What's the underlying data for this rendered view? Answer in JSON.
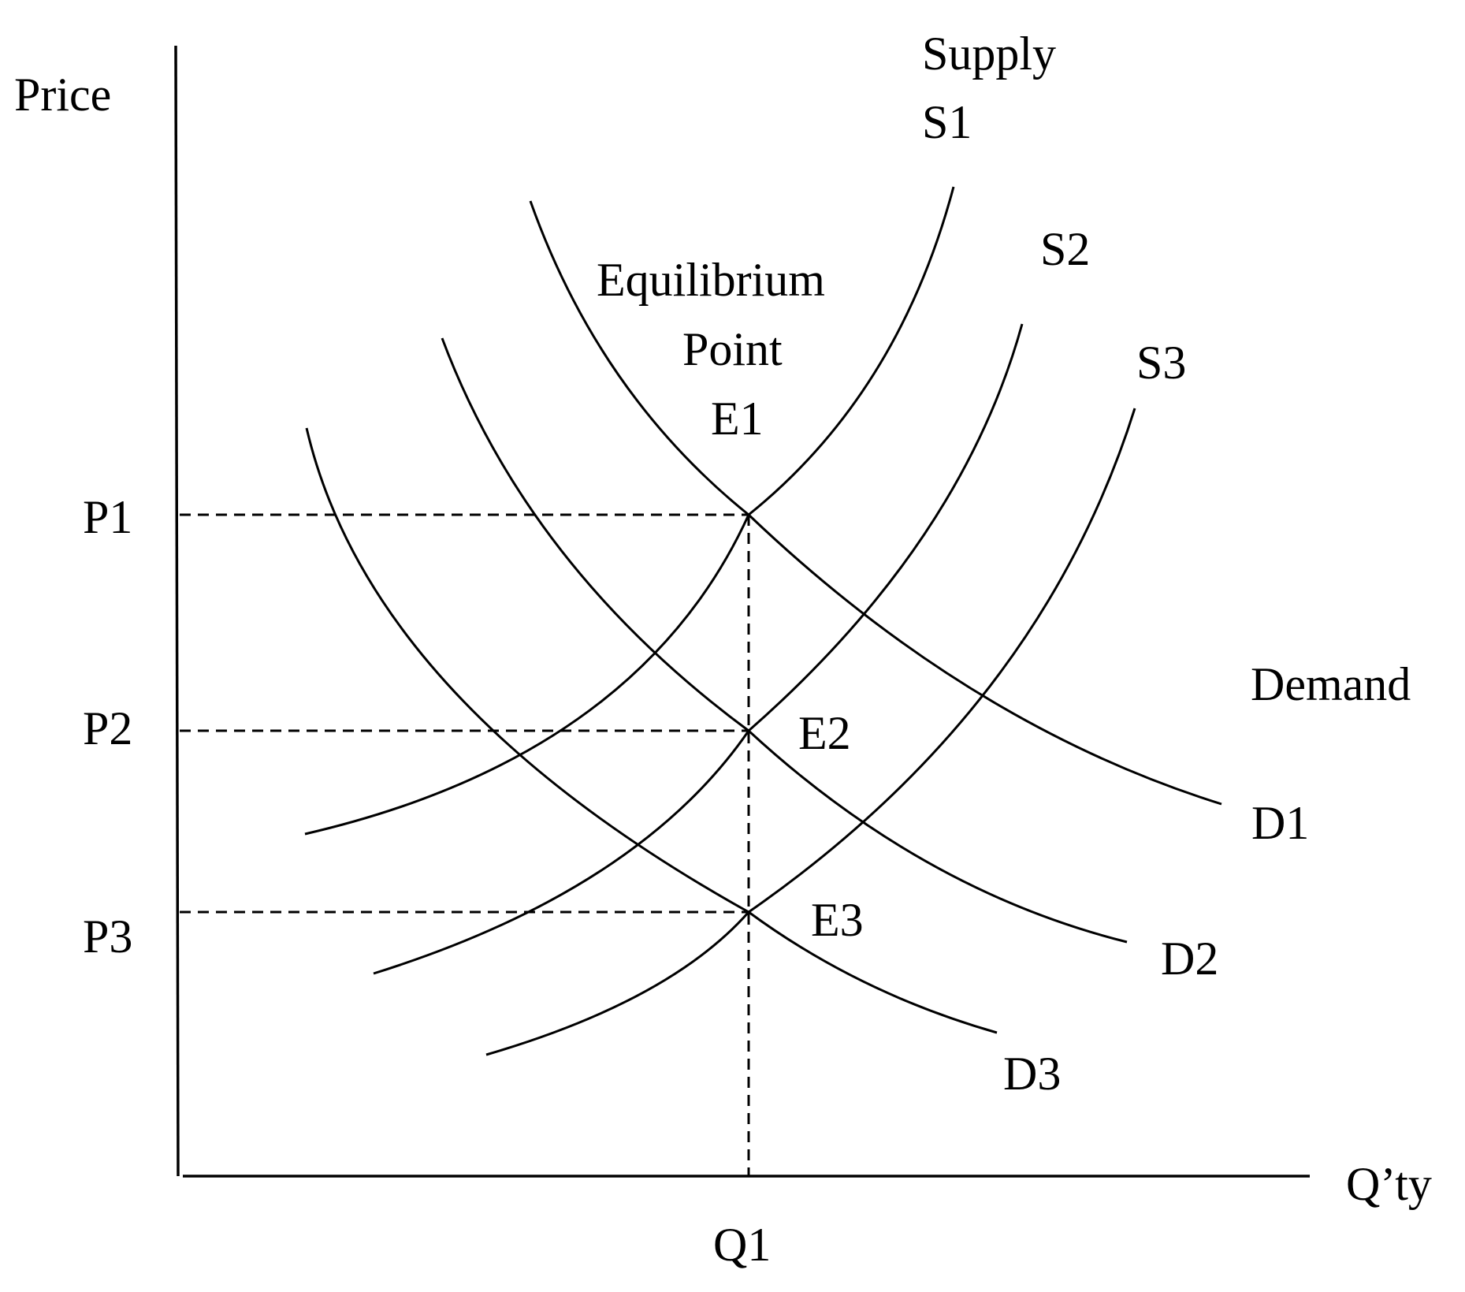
{
  "axes": {
    "y_label": "Price",
    "x_label": "Q’ty"
  },
  "ticks": {
    "p1": "P1",
    "p2": "P2",
    "p3": "P3",
    "q1": "Q1"
  },
  "supply": {
    "title": "Supply",
    "s1": "S1",
    "s2": "S2",
    "s3": "S3"
  },
  "demand": {
    "title": "Demand",
    "d1": "D1",
    "d2": "D2",
    "d3": "D3"
  },
  "equilibrium": {
    "line1": "Equilibrium",
    "line2": "Point",
    "e1": "E1",
    "e2": "E2",
    "e3": "E3"
  }
}
